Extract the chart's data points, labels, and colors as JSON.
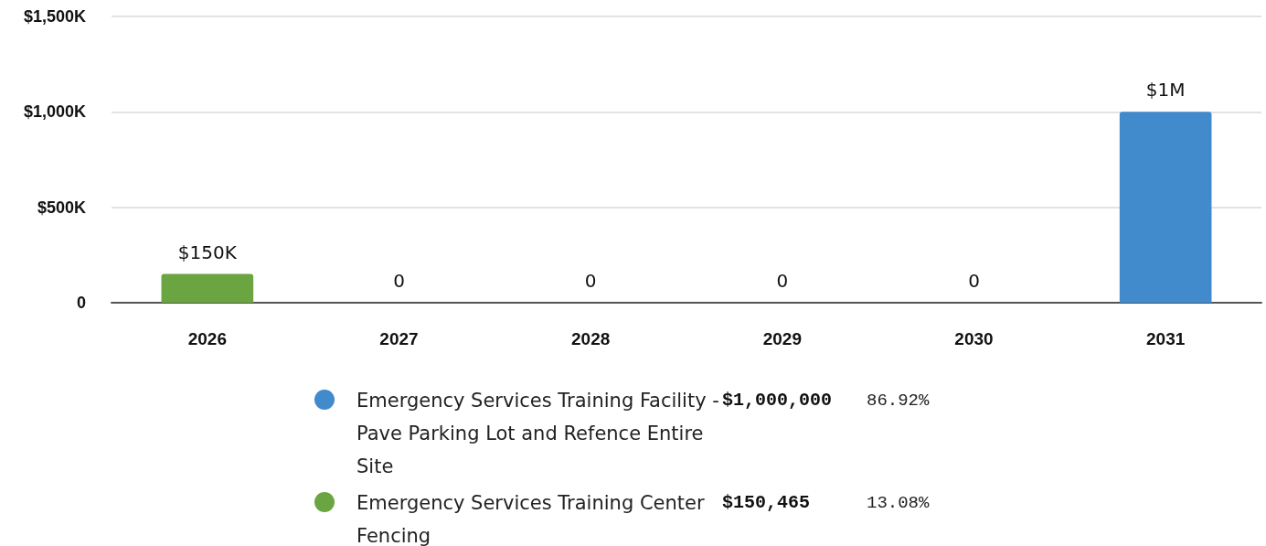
{
  "chart_data": {
    "type": "bar",
    "stacked": true,
    "categories": [
      "2026",
      "2027",
      "2028",
      "2029",
      "2030",
      "2031"
    ],
    "series": [
      {
        "name": "Emergency Services Training Facility - Pave Parking Lot and Refence Entire Site",
        "color": "#418acb",
        "values": [
          0,
          0,
          0,
          0,
          0,
          1000000
        ]
      },
      {
        "name": "Emergency Services Training Center Fencing",
        "color": "#6aa542",
        "values": [
          150465,
          0,
          0,
          0,
          0,
          0
        ]
      }
    ],
    "ylim": [
      0,
      1500000
    ],
    "yticks": [
      0,
      {
        "value": 500000,
        "label": "$500K"
      },
      {
        "value": 1000000,
        "label": "$1,000K"
      },
      {
        "value": 1500000,
        "label": "$1,500K"
      }
    ],
    "grid": "y",
    "legend": "bottom",
    "totals": [
      "$150K",
      "0",
      "0",
      "0",
      "0",
      "$1M"
    ],
    "annotations": [
      "$1,000,000",
      "86.92%",
      "$150,465",
      "13.08%"
    ]
  }
}
